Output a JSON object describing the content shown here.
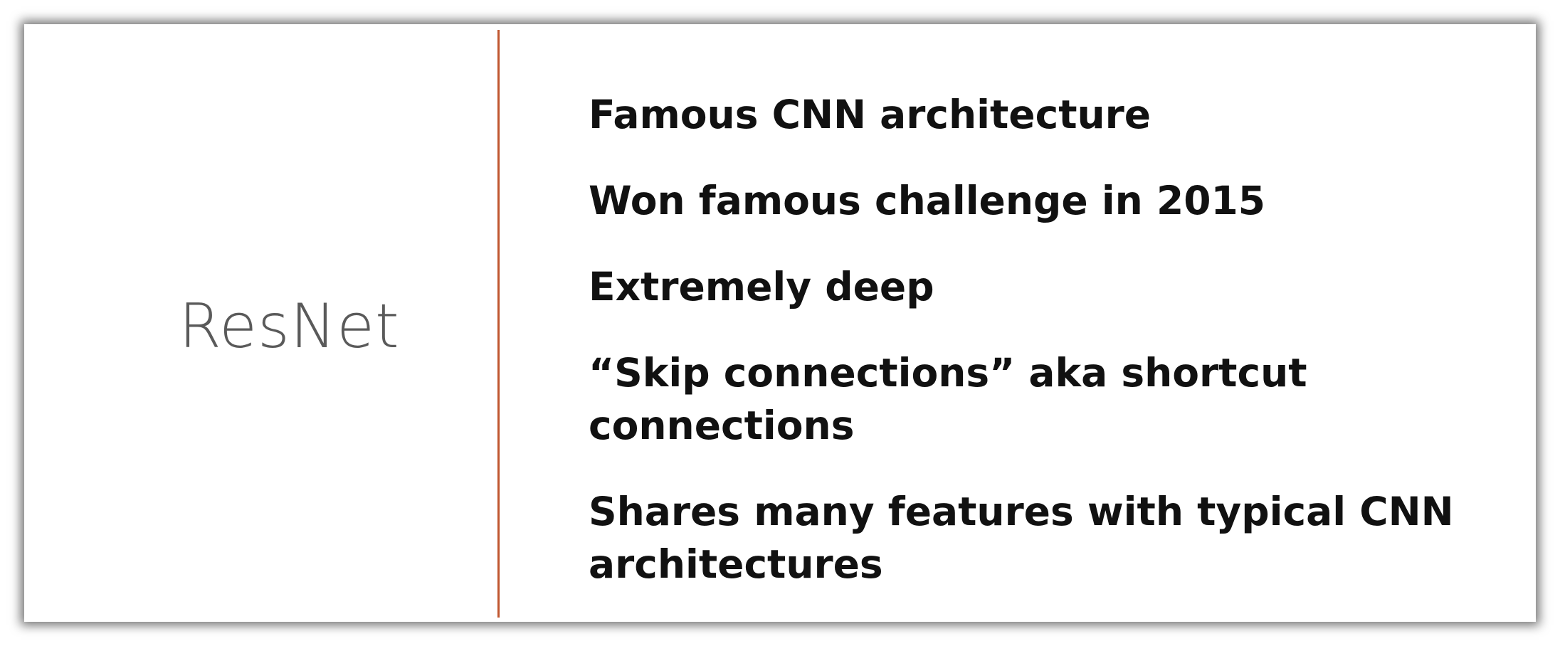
{
  "slide": {
    "title": "ResNet",
    "accent_color": "#c0562f",
    "bullets": [
      "Famous CNN architecture",
      "Won famous challenge in 2015",
      "Extremely deep",
      "“Skip connections” aka shortcut connections",
      "Shares many features with typical CNN architectures"
    ]
  }
}
